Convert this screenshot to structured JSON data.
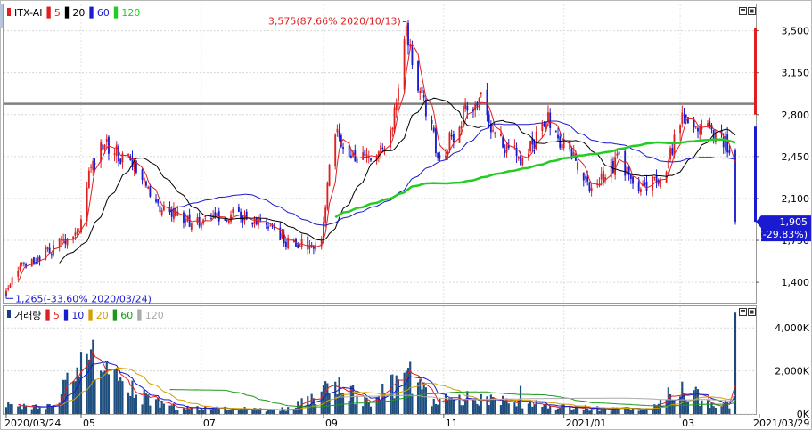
{
  "chart_data": [
    {
      "type": "candlestick",
      "title": "ITX-AI",
      "legend": {
        "series_label": "ITX-AI",
        "ma_periods": [
          "5",
          "20",
          "60",
          "120"
        ],
        "ma_colors": [
          "#e02020",
          "#000000",
          "#1a1ad0",
          "#22cc22"
        ]
      },
      "y_ticks": [
        "3,500",
        "3,150",
        "2,800",
        "2,450",
        "2,100",
        "1,750",
        "1,400"
      ],
      "y_tick_values": [
        3500,
        3150,
        2800,
        2450,
        2100,
        1750,
        1400
      ],
      "ylim": [
        1230,
        3720
      ],
      "x_ticks": [
        "2020/03/24",
        "05",
        "07",
        "09",
        "11",
        "2021/01",
        "03",
        "2021/03/29"
      ],
      "x_tick_dates": [
        "2020-03-24",
        "2020-05-01",
        "2020-07-01",
        "2020-09-01",
        "2020-11-01",
        "2021-01-01",
        "2021-03-01",
        "2021-03-29"
      ],
      "horizontal_line": 2890,
      "annotations": {
        "high": "3,575(87.66% 2020/10/13)",
        "low": "1,265(-33.60% 2020/03/24)"
      },
      "current_price_label": "1,905",
      "current_change_label": "(-29.83%)",
      "close_path": [
        [
          "2020-03-24",
          1330
        ],
        [
          "2020-04-01",
          1520
        ],
        [
          "2020-04-10",
          1610
        ],
        [
          "2020-04-20",
          1720
        ],
        [
          "2020-04-29",
          1810
        ],
        [
          "2020-05-06",
          2350
        ],
        [
          "2020-05-12",
          2560
        ],
        [
          "2020-05-20",
          2470
        ],
        [
          "2020-05-28",
          2380
        ],
        [
          "2020-06-05",
          2100
        ],
        [
          "2020-06-15",
          1990
        ],
        [
          "2020-06-25",
          1890
        ],
        [
          "2020-07-03",
          1920
        ],
        [
          "2020-07-13",
          1960
        ],
        [
          "2020-07-23",
          1940
        ],
        [
          "2020-07-31",
          1910
        ],
        [
          "2020-08-07",
          1810
        ],
        [
          "2020-08-14",
          1740
        ],
        [
          "2020-08-24",
          1700
        ],
        [
          "2020-08-31",
          1730
        ],
        [
          "2020-09-03",
          2200
        ],
        [
          "2020-09-07",
          2700
        ],
        [
          "2020-09-15",
          2450
        ],
        [
          "2020-09-25",
          2420
        ],
        [
          "2020-10-05",
          2600
        ],
        [
          "2020-10-13",
          3450
        ],
        [
          "2020-10-20",
          3000
        ],
        [
          "2020-10-26",
          2700
        ],
        [
          "2020-10-29",
          2400
        ],
        [
          "2020-11-05",
          2620
        ],
        [
          "2020-11-12",
          2820
        ],
        [
          "2020-11-20",
          2900
        ],
        [
          "2020-11-27",
          2600
        ],
        [
          "2020-12-03",
          2530
        ],
        [
          "2020-12-10",
          2430
        ],
        [
          "2020-12-17",
          2580
        ],
        [
          "2020-12-24",
          2800
        ],
        [
          "2020-12-31",
          2560
        ],
        [
          "2021-01-07",
          2420
        ],
        [
          "2021-01-14",
          2200
        ],
        [
          "2021-01-21",
          2300
        ],
        [
          "2021-01-28",
          2420
        ],
        [
          "2021-02-04",
          2250
        ],
        [
          "2021-02-11",
          2200
        ],
        [
          "2021-02-18",
          2280
        ],
        [
          "2021-02-24",
          2450
        ],
        [
          "2021-03-02",
          2840
        ],
        [
          "2021-03-08",
          2660
        ],
        [
          "2021-03-15",
          2720
        ],
        [
          "2021-03-22",
          2600
        ],
        [
          "2021-03-26",
          2520
        ],
        [
          "2021-03-29",
          1905
        ]
      ]
    },
    {
      "type": "bar",
      "title": "거래량",
      "legend": {
        "series_label": "거래량",
        "ma_periods": [
          "5",
          "10",
          "20",
          "60",
          "120"
        ],
        "ma_colors": [
          "#e02020",
          "#1a1ad0",
          "#d4a000",
          "#1a9a1a",
          "#aaaaaa"
        ]
      },
      "y_ticks": [
        "4,000K",
        "2,000K",
        "0K"
      ],
      "y_tick_values": [
        4000,
        2000,
        0
      ],
      "ylim": [
        0,
        5000
      ],
      "unit": "K",
      "volume_path": [
        [
          "2020-03-24",
          450
        ],
        [
          "2020-04-15",
          500
        ],
        [
          "2020-05-06",
          3000
        ],
        [
          "2020-05-20",
          1500
        ],
        [
          "2020-06-15",
          350
        ],
        [
          "2020-07-15",
          250
        ],
        [
          "2020-08-15",
          250
        ],
        [
          "2020-09-07",
          1400
        ],
        [
          "2020-09-25",
          600
        ],
        [
          "2020-10-13",
          2000
        ],
        [
          "2020-10-26",
          700
        ],
        [
          "2020-11-15",
          800
        ],
        [
          "2020-12-15",
          550
        ],
        [
          "2021-01-15",
          280
        ],
        [
          "2021-02-15",
          250
        ],
        [
          "2021-03-02",
          1500
        ],
        [
          "2021-03-15",
          500
        ],
        [
          "2021-03-26",
          500
        ],
        [
          "2021-03-29",
          4700
        ]
      ]
    }
  ]
}
